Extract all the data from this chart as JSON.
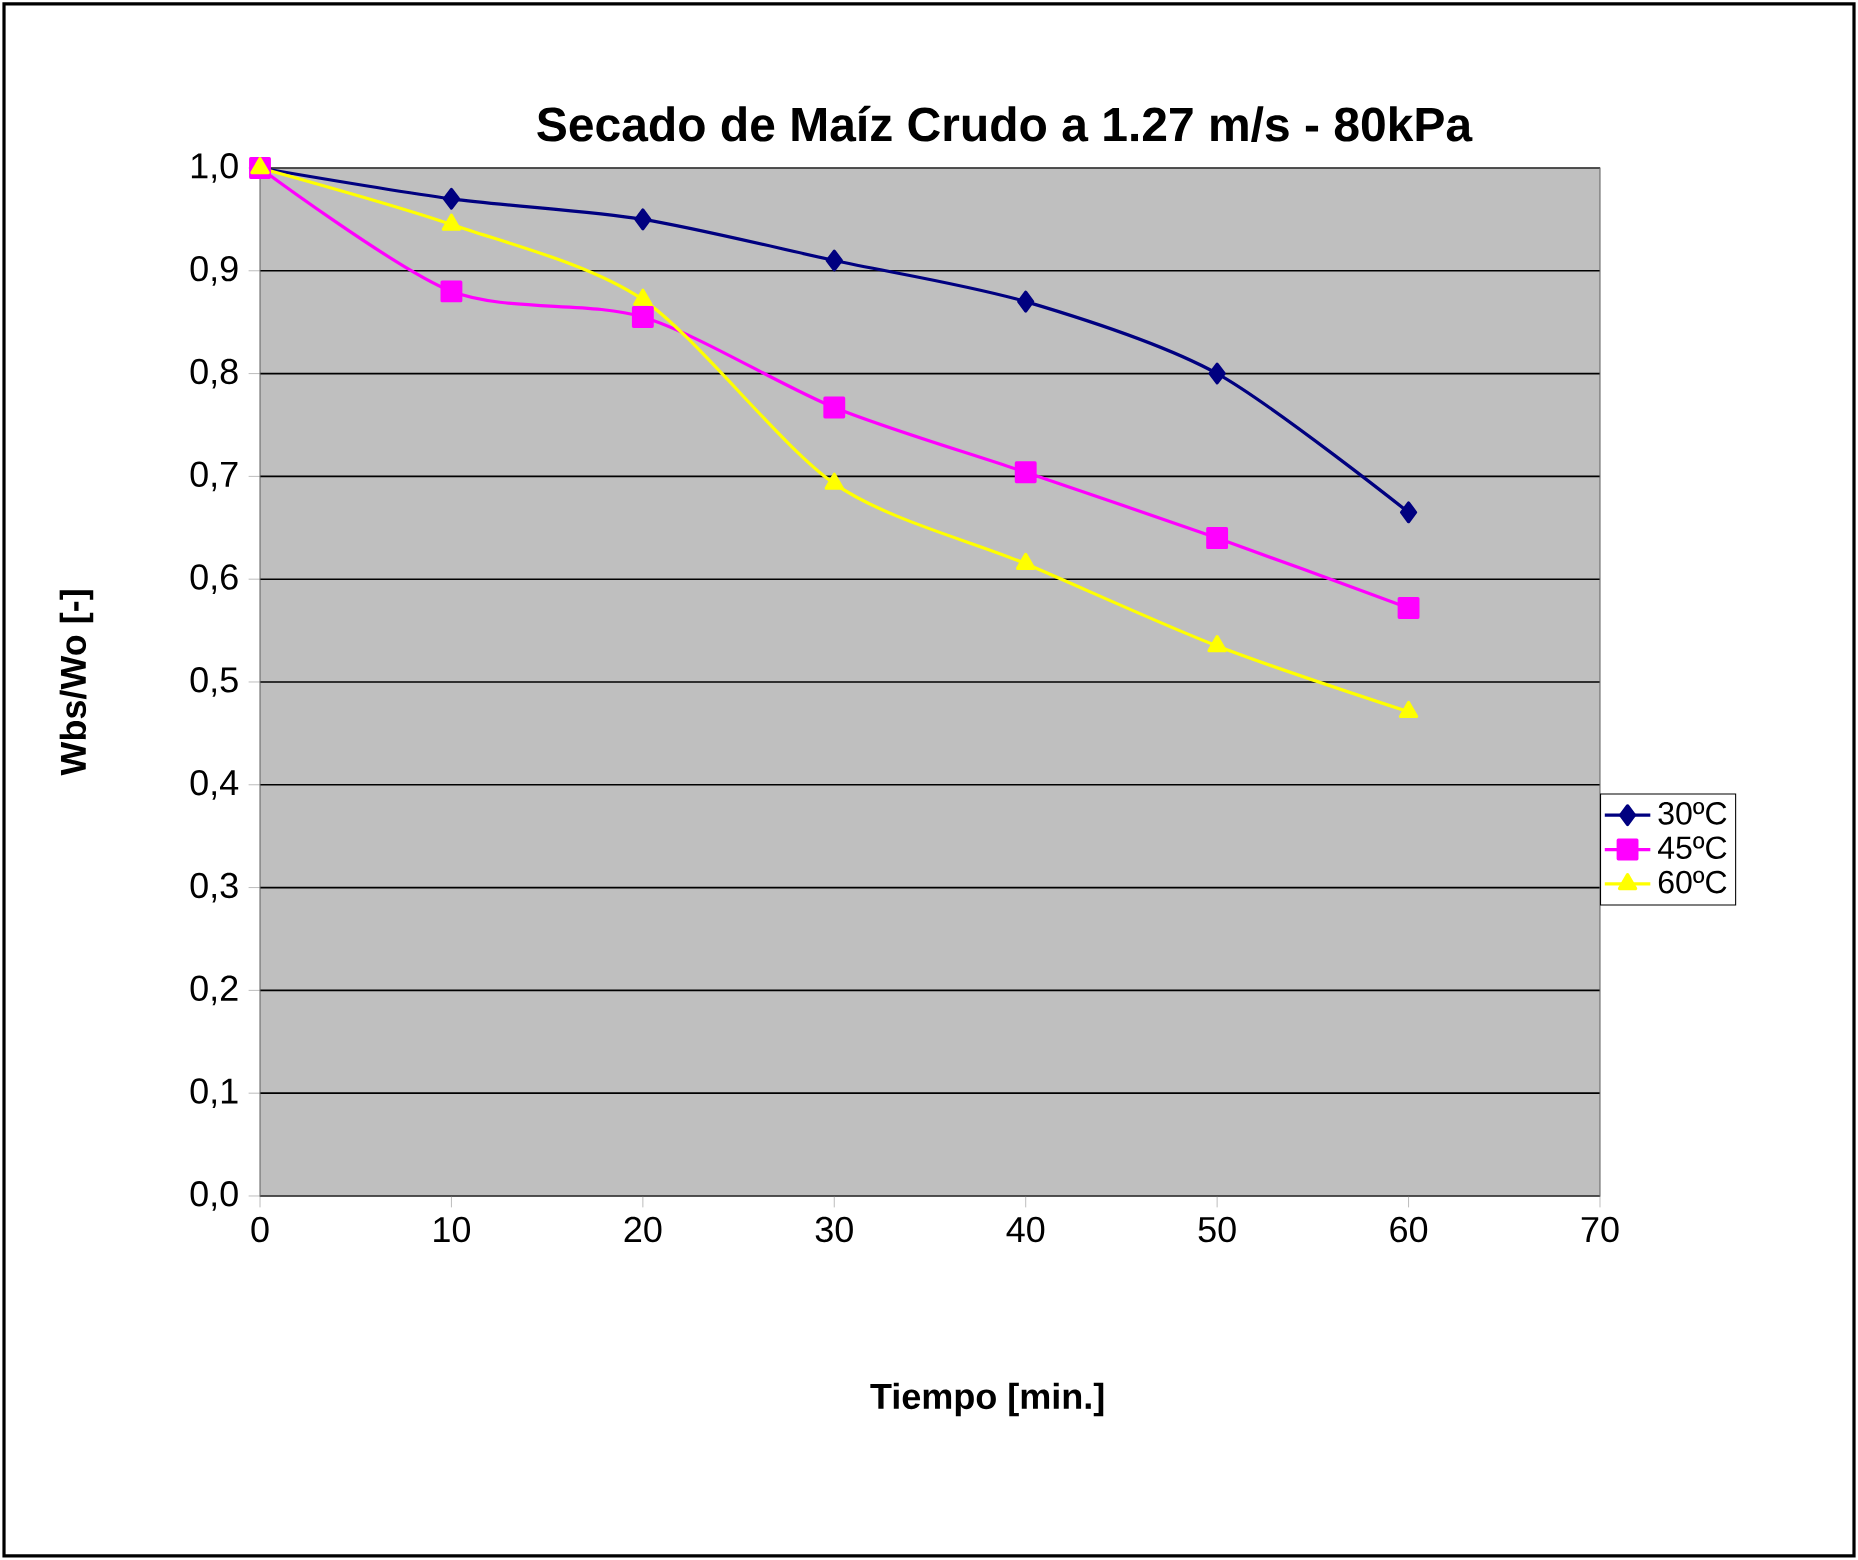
{
  "chart_data": {
    "type": "line",
    "title": "Secado de Maíz Crudo a  1.27 m/s - 80kPa",
    "xlabel": "Tiempo [min.]",
    "ylabel": "Wbs/Wo [-]",
    "x": [
      0,
      10,
      20,
      30,
      40,
      50,
      60
    ],
    "series": [
      {
        "name": "30ºC",
        "color": "#000080",
        "marker": "diamond",
        "values": [
          1.0,
          0.97,
          0.95,
          0.91,
          0.87,
          0.8,
          0.665
        ]
      },
      {
        "name": "45ºC",
        "color": "#ff00ff",
        "marker": "square",
        "values": [
          1.0,
          0.88,
          0.855,
          0.767,
          0.704,
          0.64,
          0.572
        ]
      },
      {
        "name": "60ºC",
        "color": "#ffff00",
        "marker": "triangle",
        "values": [
          1.0,
          0.945,
          0.872,
          0.693,
          0.615,
          0.535,
          0.471
        ]
      }
    ],
    "xlim": [
      0,
      70
    ],
    "xticks": [
      0,
      10,
      20,
      30,
      40,
      50,
      60,
      70
    ],
    "ylim": [
      0,
      1.0
    ],
    "yticks": [
      {
        "value": 0,
        "label": "0,0"
      },
      {
        "value": 0.1,
        "label": "0,1"
      },
      {
        "value": 0.2,
        "label": "0,2"
      },
      {
        "value": 0.3,
        "label": "0,3"
      },
      {
        "value": 0.4,
        "label": "0,4"
      },
      {
        "value": 0.5,
        "label": "0,5"
      },
      {
        "value": 0.6,
        "label": "0,6"
      },
      {
        "value": 0.7,
        "label": "0,7"
      },
      {
        "value": 0.8,
        "label": "0,8"
      },
      {
        "value": 0.9,
        "label": "0,9"
      },
      {
        "value": 1.0,
        "label": "1,0"
      }
    ],
    "grid": "y",
    "legend": "right",
    "line_style": "solid"
  }
}
